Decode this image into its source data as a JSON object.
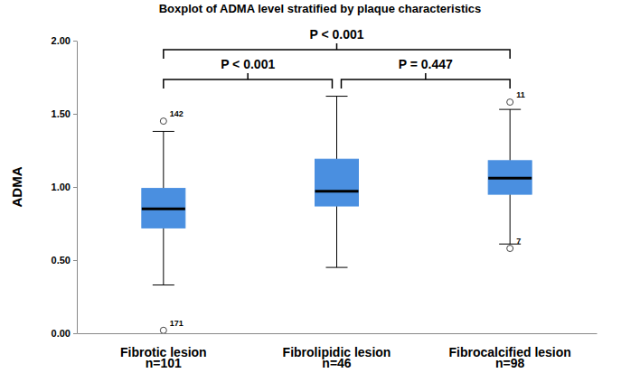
{
  "chart_data": {
    "type": "box",
    "title": "Boxplot of ADMA level stratified by plaque characteristics",
    "y_label": "ADMA",
    "categories": [
      "Fibrotic lesion",
      "Fibrolipidic lesion",
      "Fibrocalcified lesion"
    ],
    "category_counts": [
      "n=101",
      "n=46",
      "n=98"
    ],
    "color": "#4a8fe0",
    "grid": false,
    "ylim": [
      0,
      2.0
    ],
    "yticks": [
      {
        "value": 0,
        "label": "0.00"
      },
      {
        "value": 0.5,
        "label": "0.50"
      },
      {
        "value": 1.0,
        "label": "1.00"
      },
      {
        "value": 1.5,
        "label": "1.50"
      },
      {
        "value": 2.0,
        "label": "2.00"
      }
    ],
    "boxes": [
      {
        "whisker_low": 0.33,
        "q1": 0.72,
        "median": 0.85,
        "q3": 0.99,
        "whisker_high": 1.38,
        "outliers": [
          1.45,
          0.02
        ],
        "outlier_ids": [
          "142",
          "171"
        ]
      },
      {
        "whisker_low": 0.45,
        "q1": 0.87,
        "median": 0.97,
        "q3": 1.19,
        "whisker_high": 1.62,
        "outliers": [],
        "outlier_ids": []
      },
      {
        "whisker_low": 0.61,
        "q1": 0.95,
        "median": 1.06,
        "q3": 1.18,
        "whisker_high": 1.53,
        "outliers": [
          1.58,
          0.58
        ],
        "outlier_ids": [
          "11",
          "7"
        ]
      }
    ],
    "comparisons": [
      {
        "between": [
          "Fibrotic lesion",
          "Fibrocalcified lesion"
        ],
        "label": "P < 0.001"
      },
      {
        "between": [
          "Fibrotic lesion",
          "Fibrolipidic lesion"
        ],
        "label": "P < 0.001"
      },
      {
        "between": [
          "Fibrolipidic lesion",
          "Fibrocalcified lesion"
        ],
        "label": "P = 0.447"
      }
    ]
  }
}
